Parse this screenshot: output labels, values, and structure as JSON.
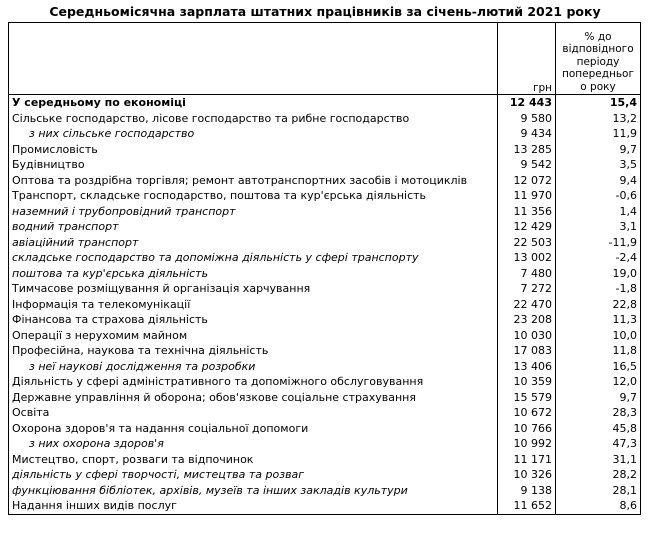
{
  "title": "Середньомісячна зарплата штатних працівників за січень-лютий 2021 року",
  "table": {
    "header": [
      "",
      "грн",
      "% до відповідного періоду попереднього року"
    ],
    "rows": [
      {
        "cells": [
          "У середньому по економіці",
          "12 443",
          "15,4"
        ],
        "style": "bold"
      },
      {
        "cells": [
          "Сільське господарство, лісове господарство та рибне господарство",
          "9 580",
          "13,2"
        ],
        "style": "normal"
      },
      {
        "cells": [
          "з них сільське господарство",
          "9 434",
          "11,9"
        ],
        "style": "indent"
      },
      {
        "cells": [
          "Промисловість",
          "13 285",
          "9,7"
        ],
        "style": "normal"
      },
      {
        "cells": [
          "Будівництво",
          "9 542",
          "3,5"
        ],
        "style": "normal"
      },
      {
        "cells": [
          "Оптова та роздрібна торгівля; ремонт автотранспортних засобів і мотоциклів",
          "12 072",
          "9,4"
        ],
        "style": "normal"
      },
      {
        "cells": [
          "Транспорт, складське господарство, поштова та кур'єрська діяльність",
          "11 970",
          "-0,6"
        ],
        "style": "normal"
      },
      {
        "cells": [
          "наземний і трубопровідний транспорт",
          "11 356",
          "1,4"
        ],
        "style": "italic"
      },
      {
        "cells": [
          "водний транспорт",
          "12 429",
          "3,1"
        ],
        "style": "italic"
      },
      {
        "cells": [
          "авіаційний транспорт",
          "22 503",
          "-11,9"
        ],
        "style": "italic"
      },
      {
        "cells": [
          "складське господарство та допоміжна діяльність у сфері транспорту",
          "13 002",
          "-2,4"
        ],
        "style": "italic"
      },
      {
        "cells": [
          "поштова та кур'єрська діяльність",
          "7 480",
          "19,0"
        ],
        "style": "italic"
      },
      {
        "cells": [
          "Тимчасове розміщування й організація харчування",
          "7 272",
          "-1,8"
        ],
        "style": "normal"
      },
      {
        "cells": [
          "Інформація та телекомунікації",
          "22 470",
          "22,8"
        ],
        "style": "normal"
      },
      {
        "cells": [
          "Фінансова та страхова діяльність",
          "23 208",
          "11,3"
        ],
        "style": "normal"
      },
      {
        "cells": [
          "Операції з нерухомим майном",
          "10 030",
          "10,0"
        ],
        "style": "normal"
      },
      {
        "cells": [
          "Професійна, наукова та технічна діяльність",
          "17 083",
          "11,8"
        ],
        "style": "normal"
      },
      {
        "cells": [
          "з неї наукові дослідження та розробки",
          "13 406",
          "16,5"
        ],
        "style": "indent"
      },
      {
        "cells": [
          "Діяльність у сфері адміністративного та допоміжного обслуговування",
          "10 359",
          "12,0"
        ],
        "style": "normal"
      },
      {
        "cells": [
          "Державне управління й оборона; обов'язкове соціальне страхування",
          "15 579",
          "9,7"
        ],
        "style": "normal"
      },
      {
        "cells": [
          "Освіта",
          "10 672",
          "28,3"
        ],
        "style": "normal"
      },
      {
        "cells": [
          "Охорона здоров'я та надання соціальної допомоги",
          "10 766",
          "45,8"
        ],
        "style": "normal"
      },
      {
        "cells": [
          "з них охорона здоров'я",
          "10 992",
          "47,3"
        ],
        "style": "indent"
      },
      {
        "cells": [
          "Мистецтво, спорт, розваги та відпочинок",
          "11 171",
          "31,1"
        ],
        "style": "normal"
      },
      {
        "cells": [
          "діяльність у сфері творчості, мистецтва та розваг",
          "10 326",
          "28,2"
        ],
        "style": "italic"
      },
      {
        "cells": [
          "функціювання бібліотек, архівів, музеїв та інших закладів культури",
          "9 138",
          "28,1"
        ],
        "style": "italic"
      },
      {
        "cells": [
          "Надання інших видів послуг",
          "11 652",
          "8,6"
        ],
        "style": "normal"
      }
    ]
  }
}
